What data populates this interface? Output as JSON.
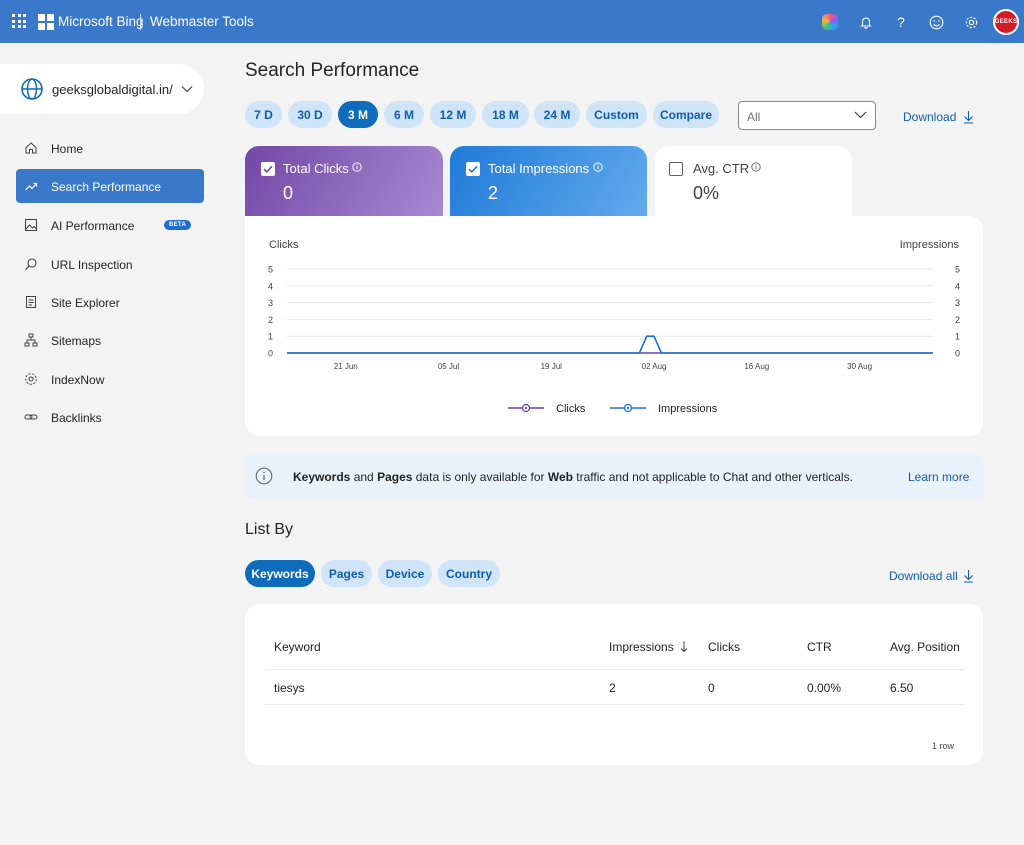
{
  "header": {
    "brand": "Microsoft Bing",
    "product": "Webmaster Tools",
    "avatar_text": "GEEKS"
  },
  "site_selector": {
    "site": "geeksglobaldigital.in/"
  },
  "sidebar": {
    "items": [
      {
        "label": "Home",
        "icon": "home-icon"
      },
      {
        "label": "Search Performance",
        "icon": "trend-icon"
      },
      {
        "label": "AI Performance",
        "icon": "image-icon",
        "badge": "BETA"
      },
      {
        "label": "URL Inspection",
        "icon": "search-icon"
      },
      {
        "label": "Site Explorer",
        "icon": "document-icon"
      },
      {
        "label": "Sitemaps",
        "icon": "sitemap-icon"
      },
      {
        "label": "IndexNow",
        "icon": "gear-icon"
      },
      {
        "label": "Backlinks",
        "icon": "link-icon"
      }
    ]
  },
  "page": {
    "title": "Search Performance",
    "ranges": [
      "7 D",
      "30 D",
      "3 M",
      "6 M",
      "12 M",
      "18 M",
      "24 M",
      "Custom",
      "Compare"
    ],
    "active_range": "3 M",
    "filter_value": "All",
    "download_label": "Download"
  },
  "metrics": {
    "clicks": {
      "label": "Total Clicks",
      "value": "0",
      "checked": true
    },
    "impressions": {
      "label": "Total Impressions",
      "value": "2",
      "checked": true
    },
    "ctr": {
      "label": "Avg. CTR",
      "value": "0%",
      "checked": false
    }
  },
  "chart_data": {
    "type": "line",
    "ylabel_left": "Clicks",
    "ylabel_right": "Impressions",
    "yticks": [
      0,
      1,
      2,
      3,
      4,
      5
    ],
    "ylim": [
      0,
      5
    ],
    "x_ticks": [
      "21 Jun",
      "05 Jul",
      "19 Jul",
      "02 Aug",
      "16 Aug",
      "30 Aug"
    ],
    "x_range": [
      "2025-06-13",
      "2025-09-09"
    ],
    "series": [
      {
        "name": "Clicks",
        "color": "#6b3fa0",
        "points": [
          [
            "2025-06-13",
            0
          ],
          [
            "2025-09-09",
            0
          ]
        ]
      },
      {
        "name": "Impressions",
        "color": "#1a73d1",
        "points": [
          [
            "2025-06-13",
            0
          ],
          [
            "2025-07-31",
            0
          ],
          [
            "2025-08-01",
            1
          ],
          [
            "2025-08-02",
            1
          ],
          [
            "2025-08-03",
            0
          ],
          [
            "2025-09-09",
            0
          ]
        ]
      }
    ],
    "legend": "bottom-center",
    "grid": true
  },
  "notice": {
    "b1": "Keywords",
    "t1": " and ",
    "b2": "Pages",
    "t2": " data is only available for ",
    "b3": "Web",
    "t3": " traffic and not applicable to Chat and other verticals.",
    "link": "Learn more"
  },
  "list": {
    "title": "List By",
    "tabs": [
      "Keywords",
      "Pages",
      "Device",
      "Country"
    ],
    "download_all": "Download all",
    "columns": [
      "Keyword",
      "Impressions",
      "Clicks",
      "CTR",
      "Avg. Position"
    ],
    "rows": [
      [
        "tiesys",
        "2",
        "0",
        "0.00%",
        "6.50"
      ]
    ],
    "row_count": "1 row"
  },
  "colors": {
    "header": "#3a78c9",
    "accent": "#0f6cbd",
    "clicks": "#6b3fa0",
    "impressions": "#1a73d1"
  }
}
